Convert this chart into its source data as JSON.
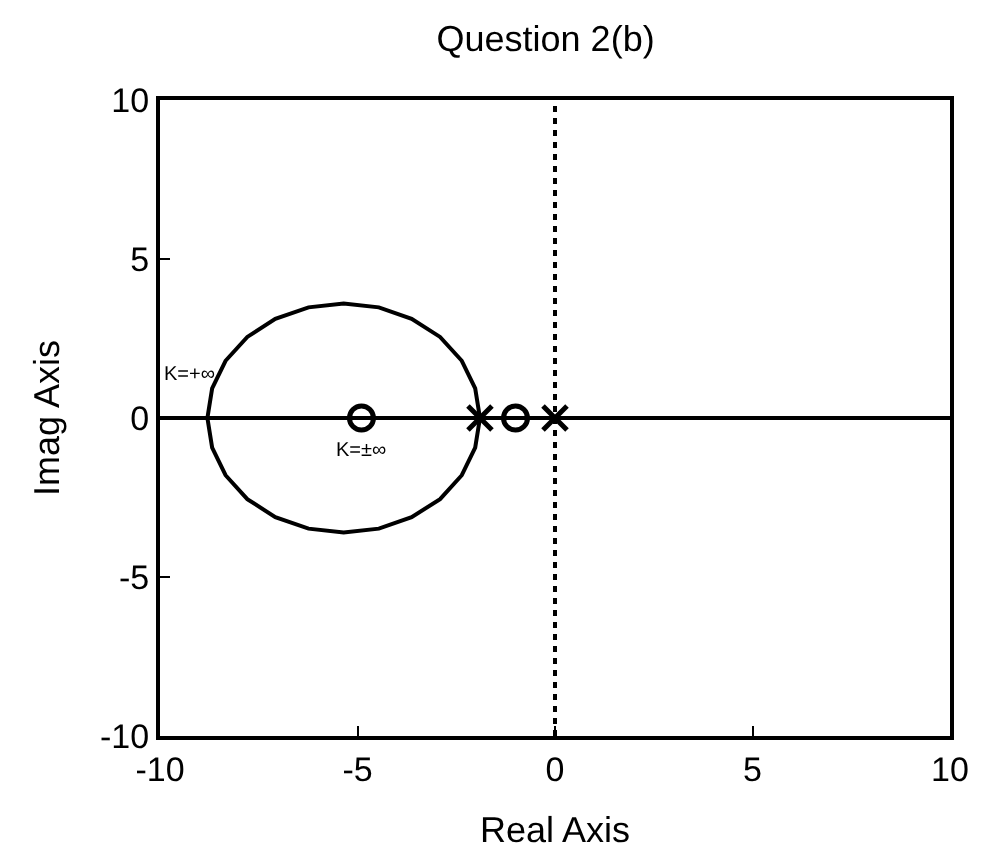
{
  "chart_data": {
    "type": "line",
    "title": "Question 2(b)",
    "xlabel": "Real Axis",
    "ylabel": "Imag Axis",
    "xlim": [
      -10,
      10
    ],
    "ylim": [
      -10,
      10
    ],
    "xticks": [
      -10,
      -5,
      0,
      5,
      10
    ],
    "yticks": [
      -10,
      -5,
      0,
      5,
      10
    ],
    "series": [
      {
        "type": "line",
        "color": "#000000",
        "marker": "none",
        "x": [
          -10,
          -8.8,
          -8.68,
          -8.34,
          -7.79,
          -7.08,
          -6.24,
          -5.35,
          -4.46,
          -3.63,
          -2.91,
          -2.36,
          -2.02,
          -1.9
        ],
        "values": [
          0,
          0,
          0.93,
          1.8,
          2.55,
          3.12,
          3.48,
          3.6,
          3.48,
          3.12,
          2.55,
          1.8,
          0.93,
          0
        ]
      },
      {
        "type": "line",
        "color": "#000000",
        "marker": "none",
        "x": [
          -8.8,
          -8.68,
          -8.34,
          -7.79,
          -7.08,
          -6.24,
          -5.35,
          -4.46,
          -3.63,
          -2.91,
          -2.36,
          -2.02,
          -1.9
        ],
        "values": [
          0,
          -0.93,
          -1.8,
          -2.55,
          -3.12,
          -3.48,
          -3.6,
          -3.48,
          -3.12,
          -2.55,
          -1.8,
          -0.93,
          0
        ]
      },
      {
        "color": "#000000",
        "marker": "none",
        "x": [
          -10,
          10
        ],
        "values": [
          0,
          0
        ]
      },
      {
        "type": "scatter",
        "color": "#000000",
        "marker": "cross",
        "x": [
          -1.9,
          0
        ],
        "values": [
          0,
          0
        ]
      },
      {
        "type": "scatter",
        "color": "#000000",
        "marker": "circle",
        "x": [
          -4.9,
          -1.0
        ],
        "values": [
          0,
          0
        ]
      }
    ],
    "ref_lines": [
      {
        "axis": "x",
        "value": 0,
        "line_style": "dotted",
        "color": "#000000"
      }
    ],
    "annotations": [
      {
        "text": "K=+∞",
        "x": -10,
        "y": 0
      },
      {
        "text": "K=±∞",
        "x": -4.9,
        "y": 0
      }
    ]
  }
}
